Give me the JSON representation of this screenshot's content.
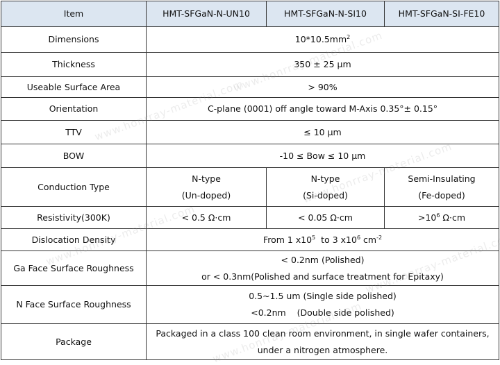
{
  "watermark": "www.honrray-material.com",
  "header": {
    "item": "Item",
    "models": [
      "HMT-SFGaN-N-UN10",
      "HMT-SFGaN-N-SI10",
      "HMT-SFGaN-SI-FE10"
    ]
  },
  "rows": {
    "dimensions": {
      "label": "Dimensions",
      "value": "10*10.5mm",
      "sup": "2"
    },
    "thickness": {
      "label": "Thickness",
      "value": "350 ± 25 µm"
    },
    "usable_area": {
      "label": "Useable Surface Area",
      "value": "> 90%"
    },
    "orientation": {
      "label": "Orientation",
      "value": "C-plane (0001) off angle toward M-Axis 0.35°± 0.15°"
    },
    "ttv": {
      "label": "TTV",
      "value": "≤ 10 µm"
    },
    "bow": {
      "label": "BOW",
      "value": "-10 ≤ Bow ≤ 10 µm"
    },
    "conduction": {
      "label": "Conduction Type",
      "values": [
        {
          "type": "N-type",
          "doping": "(Un-doped)"
        },
        {
          "type": "N-type",
          "doping": "(Si-doped)"
        },
        {
          "type": "Semi-Insulating",
          "doping": "(Fe-doped)"
        }
      ]
    },
    "resistivity": {
      "label": "Resistivity(300K)",
      "v1": "< 0.5 Ω·cm",
      "v2": "< 0.05 Ω·cm",
      "v3_pre": ">10",
      "v3_sup": "6",
      "v3_post": " Ω·cm"
    },
    "dislocation": {
      "label": "Dislocation Density",
      "p1": "From 1 x10",
      "s1": "5",
      "p2": "  to 3 x10",
      "s2": "6",
      "p3": " cm",
      "s3": "-2"
    },
    "ga_roughness": {
      "label": "Ga Face Surface Roughness",
      "line1": "< 0.2nm (Polished)",
      "line2": "or < 0.3nm(Polished and surface treatment for Epitaxy)"
    },
    "n_roughness": {
      "label": "N Face Surface Roughness",
      "line1": "0.5~1.5 um (Single side polished)",
      "line2": "<0.2nm    (Double side polished)"
    },
    "package": {
      "label": "Package",
      "line1": "Packaged in a class 100 clean room environment, in single wafer containers,",
      "line2": "under a nitrogen atmosphere."
    }
  }
}
